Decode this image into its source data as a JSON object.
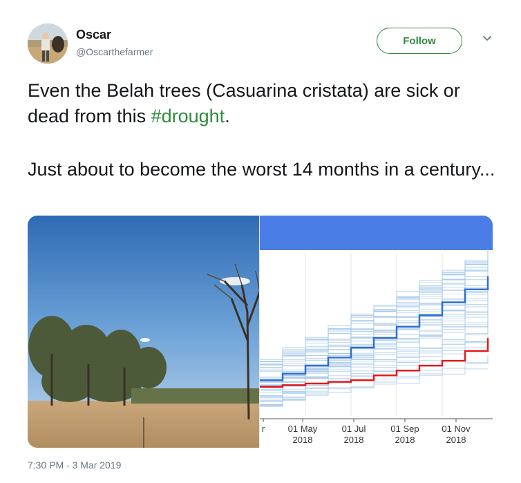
{
  "user": {
    "name": "Oscar",
    "handle": "@Oscarthefarmer"
  },
  "follow_label": "Follow",
  "tweet": {
    "line1_before": "Even the Belah trees (Casuarina cristata) are sick or dead from this ",
    "hashtag": "#drought",
    "line1_after": ".",
    "line2": "Just about to become the worst 14 months in a century..."
  },
  "timestamp": "7:30 PM - 3 Mar 2019",
  "colors": {
    "accent": "#2e8b3e",
    "chart_header": "#4a7de6",
    "median_line": "#2e6fd1",
    "current_line": "#e01b1b",
    "ensemble_lines": "#9ec3e6"
  },
  "icons": {
    "caret": "chevron-down-icon"
  },
  "chart_data": {
    "type": "line",
    "x_tick_labels": [
      {
        "top": "r",
        "bottom": ""
      },
      {
        "top": "01 May",
        "bottom": "2018"
      },
      {
        "top": "01 Jul",
        "bottom": "2018"
      },
      {
        "top": "01 Sep",
        "bottom": "2018"
      },
      {
        "top": "01 Nov",
        "bottom": "2018"
      }
    ],
    "x": [
      0,
      1,
      2,
      3,
      4,
      5,
      6,
      7,
      8,
      9,
      10
    ],
    "series": [
      {
        "color": "#2e6fd1",
        "values": [
          0.22,
          0.26,
          0.31,
          0.36,
          0.42,
          0.48,
          0.55,
          0.62,
          0.7,
          0.78,
          0.86
        ]
      },
      {
        "color": "#e01b1b",
        "values": [
          0.18,
          0.19,
          0.2,
          0.21,
          0.22,
          0.25,
          0.28,
          0.31,
          0.34,
          0.4,
          0.48
        ]
      }
    ],
    "ensemble": {
      "count": 45,
      "color": "#9ec3e6"
    }
  }
}
